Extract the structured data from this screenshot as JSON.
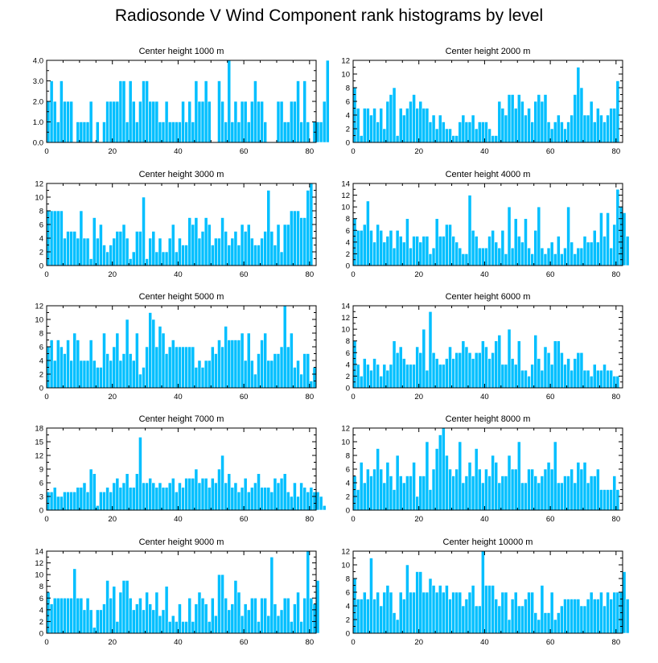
{
  "title": "Radiosonde V Wind Component rank histograms by level",
  "colors": {
    "bar_fill": "#00BFFF",
    "bar_edge": "#ffffff",
    "axis": "#000000",
    "background": "#ffffff"
  },
  "chart_data": [
    {
      "type": "bar",
      "title": "Center height 1000 m",
      "xlim": [
        0,
        82
      ],
      "xticks": [
        0,
        20,
        40,
        60,
        80
      ],
      "ylim": [
        0,
        4
      ],
      "yticks": [
        "0.0",
        "1.0",
        "2.0",
        "3.0",
        "4.0"
      ],
      "values": [
        2,
        3,
        2,
        1,
        3,
        2,
        2,
        2,
        0,
        1,
        1,
        1,
        1,
        2,
        0,
        1,
        0,
        1,
        2,
        2,
        2,
        2,
        3,
        3,
        1,
        3,
        2,
        1,
        2,
        3,
        3,
        2,
        2,
        2,
        1,
        1,
        2,
        1,
        1,
        1,
        1,
        2,
        1,
        2,
        1,
        3,
        2,
        2,
        3,
        2,
        0,
        0,
        3,
        2,
        1,
        4,
        1,
        2,
        1,
        2,
        2,
        1,
        2,
        3,
        2,
        2,
        1,
        0,
        0,
        0,
        2,
        2,
        1,
        1,
        2,
        2,
        3,
        1,
        3,
        1,
        0,
        1,
        1,
        1,
        2,
        4
      ]
    },
    {
      "type": "bar",
      "title": "Center height 2000 m",
      "xlim": [
        0,
        82
      ],
      "xticks": [
        0,
        20,
        40,
        60,
        80
      ],
      "ylim": [
        0,
        12
      ],
      "yticks": [
        "0",
        "2",
        "4",
        "6",
        "8",
        "10",
        "12"
      ],
      "values": [
        8,
        5,
        1,
        5,
        5,
        4,
        5,
        3,
        5,
        2,
        6,
        7,
        8,
        1,
        5,
        4,
        5,
        6,
        7,
        5,
        6,
        5,
        5,
        3,
        4,
        2,
        4,
        3,
        2,
        2,
        1,
        1,
        3,
        4,
        3,
        3,
        4,
        2,
        3,
        3,
        3,
        2,
        1,
        1,
        6,
        5,
        4,
        7,
        7,
        5,
        7,
        6,
        4,
        5,
        3,
        6,
        7,
        6,
        7,
        3,
        2,
        3,
        4,
        3,
        2,
        3,
        4,
        7,
        11,
        8,
        4,
        4,
        6,
        3,
        5,
        4,
        3,
        4,
        5,
        5,
        9
      ]
    },
    {
      "type": "bar",
      "title": "Center height 3000 m",
      "xlim": [
        0,
        82
      ],
      "xticks": [
        0,
        20,
        40,
        60,
        80
      ],
      "ylim": [
        0,
        12
      ],
      "yticks": [
        "0",
        "2",
        "4",
        "6",
        "8",
        "10",
        "12"
      ],
      "values": [
        8,
        8,
        8,
        8,
        8,
        4,
        5,
        5,
        5,
        4,
        8,
        4,
        4,
        1,
        7,
        4,
        6,
        3,
        2,
        3,
        4,
        5,
        5,
        6,
        4,
        1,
        2,
        5,
        5,
        10,
        1,
        4,
        5,
        2,
        4,
        2,
        2,
        4,
        6,
        2,
        4,
        3,
        3,
        7,
        6,
        7,
        4,
        5,
        7,
        6,
        3,
        4,
        4,
        7,
        5,
        3,
        4,
        5,
        3,
        6,
        5,
        6,
        4,
        3,
        3,
        4,
        5,
        11,
        5,
        3,
        6,
        2,
        6,
        6,
        8,
        8,
        8,
        7,
        7,
        11,
        12
      ]
    },
    {
      "type": "bar",
      "title": "Center height 4000 m",
      "xlim": [
        0,
        82
      ],
      "xticks": [
        0,
        20,
        40,
        60,
        80
      ],
      "ylim": [
        0,
        14
      ],
      "yticks": [
        "0",
        "2",
        "4",
        "6",
        "8",
        "10",
        "12",
        "14"
      ],
      "values": [
        8,
        6,
        6,
        7,
        11,
        6,
        4,
        7,
        6,
        4,
        5,
        6,
        3,
        6,
        5,
        4,
        8,
        3,
        5,
        5,
        4,
        5,
        5,
        2,
        3,
        8,
        5,
        5,
        7,
        7,
        5,
        4,
        3,
        2,
        2,
        12,
        6,
        5,
        3,
        3,
        3,
        5,
        6,
        4,
        3,
        6,
        2,
        10,
        3,
        8,
        5,
        4,
        8,
        3,
        2,
        6,
        10,
        3,
        2,
        3,
        4,
        2,
        5,
        2,
        3,
        10,
        4,
        2,
        3,
        3,
        5,
        4,
        4,
        6,
        4,
        9,
        5,
        9,
        3,
        7,
        13,
        10,
        9,
        5
      ]
    },
    {
      "type": "bar",
      "title": "Center height 5000 m",
      "xlim": [
        0,
        82
      ],
      "xticks": [
        0,
        20,
        40,
        60,
        80
      ],
      "ylim": [
        0,
        12
      ],
      "yticks": [
        "0",
        "2",
        "4",
        "6",
        "8",
        "10",
        "12"
      ],
      "values": [
        6,
        7,
        4,
        7,
        6,
        5,
        7,
        4,
        8,
        7,
        4,
        4,
        4,
        7,
        4,
        3,
        3,
        8,
        5,
        4,
        6,
        8,
        4,
        5,
        10,
        5,
        4,
        8,
        2,
        3,
        6,
        11,
        10,
        6,
        9,
        8,
        5,
        6,
        7,
        6,
        6,
        6,
        6,
        6,
        6,
        3,
        4,
        3,
        4,
        4,
        6,
        5,
        7,
        6,
        9,
        7,
        7,
        7,
        7,
        8,
        4,
        8,
        4,
        2,
        5,
        7,
        8,
        4,
        4,
        5,
        5,
        6,
        12,
        6,
        8,
        3,
        4,
        2,
        5,
        5,
        1,
        3
      ]
    },
    {
      "type": "bar",
      "title": "Center height 6000 m",
      "xlim": [
        0,
        82
      ],
      "xticks": [
        0,
        20,
        40,
        60,
        80
      ],
      "ylim": [
        0,
        14
      ],
      "yticks": [
        "0",
        "2",
        "4",
        "6",
        "8",
        "10",
        "12",
        "14"
      ],
      "values": [
        8,
        4,
        2,
        5,
        4,
        3,
        5,
        4,
        2,
        4,
        3,
        4,
        8,
        6,
        7,
        5,
        4,
        4,
        4,
        7,
        6,
        10,
        3,
        13,
        6,
        5,
        4,
        4,
        5,
        7,
        5,
        6,
        6,
        8,
        7,
        6,
        5,
        6,
        6,
        8,
        7,
        5,
        6,
        8,
        9,
        4,
        4,
        10,
        5,
        4,
        8,
        3,
        3,
        2,
        4,
        9,
        5,
        3,
        7,
        6,
        4,
        8,
        8,
        6,
        4,
        5,
        3,
        5,
        6,
        6,
        3,
        3,
        2,
        4,
        3,
        3,
        4,
        3,
        3,
        2,
        2
      ]
    },
    {
      "type": "bar",
      "title": "Center height 7000 m",
      "xlim": [
        0,
        82
      ],
      "xticks": [
        0,
        20,
        40,
        60,
        80
      ],
      "ylim": [
        0,
        18
      ],
      "yticks": [
        "0",
        "3",
        "6",
        "9",
        "12",
        "15",
        "18"
      ],
      "values": [
        4,
        4,
        5,
        3,
        3,
        4,
        4,
        4,
        4,
        5,
        5,
        6,
        4,
        9,
        8,
        1,
        4,
        4,
        5,
        4,
        6,
        7,
        5,
        6,
        8,
        5,
        5,
        8,
        16,
        6,
        6,
        7,
        6,
        5,
        6,
        5,
        5,
        6,
        7,
        4,
        6,
        5,
        7,
        7,
        7,
        9,
        6,
        7,
        7,
        5,
        7,
        6,
        9,
        12,
        6,
        8,
        5,
        6,
        4,
        5,
        7,
        4,
        5,
        6,
        8,
        5,
        5,
        5,
        4,
        7,
        6,
        7,
        8,
        4,
        3,
        6,
        3,
        6,
        5,
        4,
        5,
        4,
        4,
        3,
        1
      ]
    },
    {
      "type": "bar",
      "title": "Center height 8000 m",
      "xlim": [
        0,
        82
      ],
      "xticks": [
        0,
        20,
        40,
        60,
        80
      ],
      "ylim": [
        0,
        12
      ],
      "yticks": [
        "0",
        "2",
        "4",
        "6",
        "8",
        "10",
        "12"
      ],
      "values": [
        5,
        3,
        7,
        4,
        6,
        5,
        6,
        9,
        6,
        4,
        7,
        5,
        3,
        8,
        5,
        4,
        5,
        5,
        7,
        2,
        5,
        5,
        10,
        3,
        6,
        9,
        11,
        12,
        8,
        6,
        5,
        6,
        10,
        4,
        5,
        7,
        5,
        9,
        6,
        4,
        6,
        5,
        8,
        7,
        4,
        5,
        5,
        8,
        6,
        6,
        10,
        4,
        4,
        6,
        6,
        5,
        4,
        5,
        6,
        7,
        6,
        10,
        4,
        4,
        5,
        5,
        6,
        4,
        7,
        6,
        7,
        4,
        5,
        5,
        6,
        3,
        3,
        3,
        3,
        5,
        3
      ]
    },
    {
      "type": "bar",
      "title": "Center height 9000 m",
      "xlim": [
        0,
        82
      ],
      "xticks": [
        0,
        20,
        40,
        60,
        80
      ],
      "ylim": [
        0,
        14
      ],
      "yticks": [
        "0",
        "2",
        "4",
        "6",
        "8",
        "10",
        "12",
        "14"
      ],
      "values": [
        7,
        5,
        6,
        6,
        6,
        6,
        6,
        6,
        11,
        6,
        6,
        4,
        6,
        4,
        1,
        4,
        4,
        5,
        9,
        6,
        8,
        2,
        7,
        9,
        9,
        6,
        4,
        5,
        6,
        4,
        7,
        5,
        4,
        7,
        3,
        4,
        8,
        2,
        3,
        2,
        5,
        2,
        2,
        6,
        2,
        5,
        7,
        6,
        5,
        2,
        6,
        3,
        10,
        10,
        6,
        4,
        5,
        9,
        7,
        3,
        5,
        4,
        6,
        6,
        2,
        6,
        6,
        3,
        13,
        5,
        3,
        4,
        6,
        6,
        2,
        5,
        7,
        2,
        6,
        14,
        6,
        5,
        9
      ]
    },
    {
      "type": "bar",
      "title": "Center height 10000 m",
      "xlim": [
        0,
        82
      ],
      "xticks": [
        0,
        20,
        40,
        60,
        80
      ],
      "ylim": [
        0,
        12
      ],
      "yticks": [
        "0",
        "2",
        "4",
        "6",
        "8",
        "10",
        "12"
      ],
      "values": [
        8,
        5,
        5,
        6,
        5,
        11,
        5,
        6,
        4,
        6,
        7,
        6,
        3,
        2,
        6,
        5,
        10,
        6,
        6,
        9,
        9,
        6,
        6,
        8,
        7,
        6,
        7,
        6,
        7,
        5,
        6,
        6,
        6,
        4,
        5,
        6,
        7,
        4,
        4,
        12,
        7,
        7,
        7,
        5,
        4,
        6,
        6,
        2,
        5,
        6,
        4,
        4,
        5,
        6,
        6,
        3,
        2,
        7,
        3,
        3,
        6,
        2,
        3,
        4,
        5,
        5,
        5,
        5,
        5,
        4,
        4,
        5,
        6,
        5,
        5,
        6,
        4,
        6,
        5,
        6,
        6,
        6,
        9,
        5
      ]
    }
  ]
}
